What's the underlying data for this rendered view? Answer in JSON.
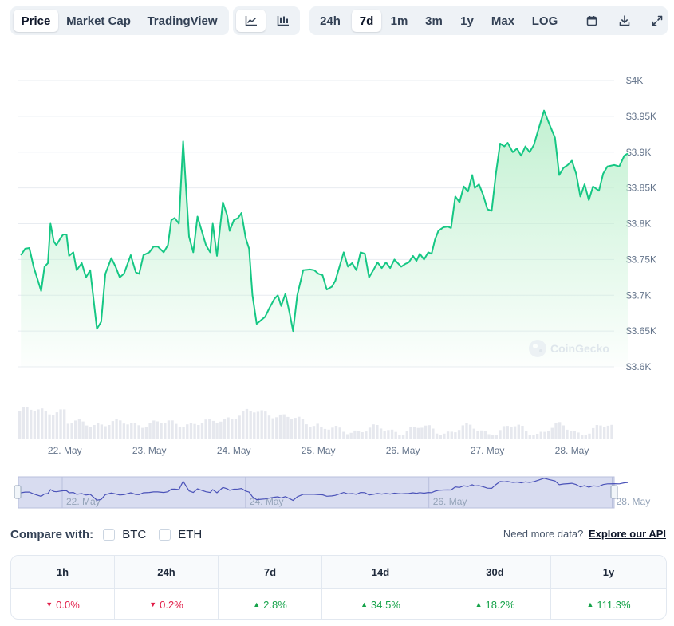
{
  "toolbar": {
    "views": [
      {
        "label": "Price",
        "active": true
      },
      {
        "label": "Market Cap",
        "active": false
      },
      {
        "label": "TradingView",
        "active": false
      }
    ],
    "chart_types": [
      {
        "icon": "line-chart-icon",
        "active": true
      },
      {
        "icon": "candlestick-chart-icon",
        "active": false
      }
    ],
    "ranges": [
      {
        "label": "24h",
        "active": false
      },
      {
        "label": "7d",
        "active": true
      },
      {
        "label": "1m",
        "active": false
      },
      {
        "label": "3m",
        "active": false
      },
      {
        "label": "1y",
        "active": false
      },
      {
        "label": "Max",
        "active": false
      },
      {
        "label": "LOG",
        "active": false
      }
    ],
    "tools": [
      {
        "icon": "calendar-icon"
      },
      {
        "icon": "download-icon"
      },
      {
        "icon": "expand-icon"
      }
    ]
  },
  "watermark": "CoinGecko",
  "colors": {
    "line": "#16c784",
    "area_top": "#bff0cf",
    "volume": "#e6e8ee",
    "navigator_fill": "#d8dcf0",
    "navigator_line": "#4a52b8",
    "axis_text": "#64748b"
  },
  "chart_data": {
    "type": "area",
    "title": "",
    "xlabel": "",
    "ylabel": "",
    "ylim": [
      3600,
      4000
    ],
    "y_ticks": [
      4000,
      3950,
      3900,
      3850,
      3800,
      3750,
      3700,
      3650,
      3600
    ],
    "y_tick_labels": [
      "$4K",
      "$3.95K",
      "$3.9K",
      "$3.85K",
      "$3.8K",
      "$3.75K",
      "$3.7K",
      "$3.65K",
      "$3.6K"
    ],
    "xlim": [
      -0.55,
      6.5
    ],
    "x_ticks": [
      0,
      1,
      2,
      3,
      4,
      5,
      6
    ],
    "x_tick_labels": [
      "22. May",
      "23. May",
      "24. May",
      "25. May",
      "26. May",
      "27. May",
      "28. May"
    ],
    "grid": true,
    "legend": "none",
    "series": [
      {
        "values": [
          [
            -0.52,
            3756
          ],
          [
            -0.47,
            3765
          ],
          [
            -0.42,
            3766
          ],
          [
            -0.37,
            3740
          ],
          [
            -0.33,
            3725
          ],
          [
            -0.28,
            3706
          ],
          [
            -0.24,
            3740
          ],
          [
            -0.2,
            3745
          ],
          [
            -0.17,
            3800
          ],
          [
            -0.13,
            3775
          ],
          [
            -0.1,
            3770
          ],
          [
            -0.05,
            3780
          ],
          [
            -0.02,
            3785
          ],
          [
            0.02,
            3785
          ],
          [
            0.05,
            3755
          ],
          [
            0.1,
            3760
          ],
          [
            0.14,
            3735
          ],
          [
            0.2,
            3745
          ],
          [
            0.25,
            3725
          ],
          [
            0.3,
            3735
          ],
          [
            0.38,
            3653
          ],
          [
            0.43,
            3663
          ],
          [
            0.48,
            3730
          ],
          [
            0.55,
            3752
          ],
          [
            0.6,
            3740
          ],
          [
            0.65,
            3725
          ],
          [
            0.7,
            3730
          ],
          [
            0.78,
            3756
          ],
          [
            0.84,
            3732
          ],
          [
            0.88,
            3730
          ],
          [
            0.93,
            3756
          ],
          [
            1.0,
            3760
          ],
          [
            1.05,
            3768
          ],
          [
            1.1,
            3768
          ],
          [
            1.17,
            3760
          ],
          [
            1.22,
            3770
          ],
          [
            1.26,
            3805
          ],
          [
            1.3,
            3808
          ],
          [
            1.35,
            3800
          ],
          [
            1.4,
            3915
          ],
          [
            1.47,
            3782
          ],
          [
            1.52,
            3760
          ],
          [
            1.57,
            3810
          ],
          [
            1.62,
            3790
          ],
          [
            1.67,
            3770
          ],
          [
            1.72,
            3760
          ],
          [
            1.75,
            3800
          ],
          [
            1.8,
            3755
          ],
          [
            1.87,
            3830
          ],
          [
            1.92,
            3812
          ],
          [
            1.95,
            3790
          ],
          [
            2.0,
            3805
          ],
          [
            2.05,
            3808
          ],
          [
            2.09,
            3815
          ],
          [
            2.14,
            3780
          ],
          [
            2.18,
            3765
          ],
          [
            2.22,
            3700
          ],
          [
            2.27,
            3660
          ],
          [
            2.32,
            3665
          ],
          [
            2.37,
            3670
          ],
          [
            2.42,
            3682
          ],
          [
            2.48,
            3695
          ],
          [
            2.52,
            3700
          ],
          [
            2.56,
            3685
          ],
          [
            2.61,
            3702
          ],
          [
            2.66,
            3675
          ],
          [
            2.7,
            3650
          ],
          [
            2.75,
            3700
          ],
          [
            2.82,
            3735
          ],
          [
            2.9,
            3736
          ],
          [
            2.95,
            3735
          ],
          [
            3.0,
            3730
          ],
          [
            3.05,
            3728
          ],
          [
            3.1,
            3708
          ],
          [
            3.16,
            3712
          ],
          [
            3.2,
            3720
          ],
          [
            3.25,
            3740
          ],
          [
            3.3,
            3760
          ],
          [
            3.35,
            3740
          ],
          [
            3.4,
            3745
          ],
          [
            3.45,
            3735
          ],
          [
            3.5,
            3760
          ],
          [
            3.55,
            3758
          ],
          [
            3.6,
            3725
          ],
          [
            3.65,
            3735
          ],
          [
            3.7,
            3746
          ],
          [
            3.75,
            3738
          ],
          [
            3.8,
            3746
          ],
          [
            3.85,
            3738
          ],
          [
            3.9,
            3750
          ],
          [
            3.94,
            3745
          ],
          [
            3.98,
            3740
          ],
          [
            4.03,
            3744
          ],
          [
            4.07,
            3746
          ],
          [
            4.12,
            3755
          ],
          [
            4.16,
            3748
          ],
          [
            4.2,
            3758
          ],
          [
            4.25,
            3750
          ],
          [
            4.3,
            3760
          ],
          [
            4.34,
            3758
          ],
          [
            4.38,
            3778
          ],
          [
            4.42,
            3790
          ],
          [
            4.48,
            3795
          ],
          [
            4.53,
            3796
          ],
          [
            4.57,
            3794
          ],
          [
            4.62,
            3838
          ],
          [
            4.67,
            3830
          ],
          [
            4.72,
            3852
          ],
          [
            4.77,
            3845
          ],
          [
            4.82,
            3868
          ],
          [
            4.85,
            3850
          ],
          [
            4.9,
            3855
          ],
          [
            4.95,
            3840
          ],
          [
            5.0,
            3820
          ],
          [
            5.05,
            3818
          ],
          [
            5.1,
            3870
          ],
          [
            5.15,
            3912
          ],
          [
            5.2,
            3908
          ],
          [
            5.24,
            3913
          ],
          [
            5.3,
            3900
          ],
          [
            5.35,
            3905
          ],
          [
            5.4,
            3895
          ],
          [
            5.45,
            3908
          ],
          [
            5.5,
            3900
          ],
          [
            5.55,
            3910
          ],
          [
            5.6,
            3930
          ],
          [
            5.67,
            3958
          ],
          [
            5.73,
            3940
          ],
          [
            5.8,
            3920
          ],
          [
            5.85,
            3868
          ],
          [
            5.9,
            3878
          ],
          [
            5.95,
            3882
          ],
          [
            6.0,
            3888
          ],
          [
            6.05,
            3870
          ],
          [
            6.1,
            3838
          ],
          [
            6.15,
            3855
          ],
          [
            6.2,
            3833
          ],
          [
            6.25,
            3852
          ],
          [
            6.32,
            3846
          ],
          [
            6.37,
            3870
          ],
          [
            6.42,
            3880
          ],
          [
            6.5,
            3882
          ],
          [
            6.56,
            3880
          ],
          [
            6.62,
            3895
          ],
          [
            6.66,
            3898
          ]
        ]
      }
    ]
  },
  "compare": {
    "label": "Compare with:",
    "options": [
      {
        "label": "BTC",
        "checked": false
      },
      {
        "label": "ETH",
        "checked": false
      }
    ]
  },
  "api": {
    "text": "Need more data?",
    "link": "Explore our API"
  },
  "performance": {
    "headers": [
      "1h",
      "24h",
      "7d",
      "14d",
      "30d",
      "1y"
    ],
    "values": [
      {
        "text": "0.0%",
        "dir": "down"
      },
      {
        "text": "0.2%",
        "dir": "down"
      },
      {
        "text": "2.8%",
        "dir": "up"
      },
      {
        "text": "34.5%",
        "dir": "up"
      },
      {
        "text": "18.2%",
        "dir": "up"
      },
      {
        "text": "111.3%",
        "dir": "up"
      }
    ]
  }
}
